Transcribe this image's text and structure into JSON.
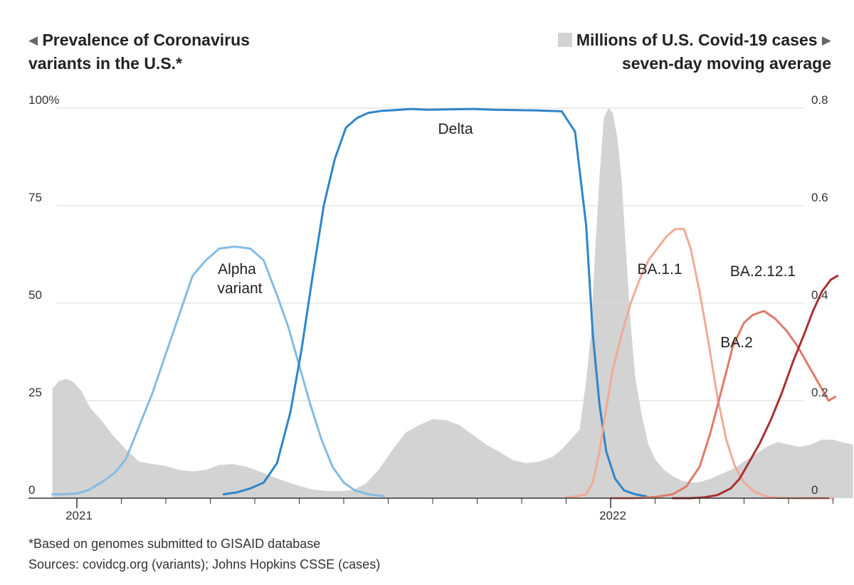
{
  "header": {
    "left_title_line1": "Prevalence of Coronavirus",
    "left_title_line2": "variants in the U.S.*",
    "right_title_line1": "Millions of U.S. Covid-19 cases",
    "right_title_line2": "seven-day moving average"
  },
  "footer": {
    "note": "*Based on genomes submitted to GISAID database",
    "sources": "Sources: covidcg.org (variants); Johns Hopkins CSSE (cases)"
  },
  "colors": {
    "cases_area": "#d3d3d3",
    "alpha": "#85bbe3",
    "delta": "#2f85c9",
    "ba11": "#f0aa98",
    "ba2": "#df7a69",
    "ba2121": "#a83233",
    "grid": "#d9d9d9",
    "axis": "#333333"
  },
  "chart_data": {
    "type": "area+line",
    "left_axis": {
      "title": "Prevalence of Coronavirus variants in the U.S.*",
      "unit": "%",
      "ylim": [
        0,
        100
      ],
      "ticks": [
        0,
        25,
        50,
        75,
        100
      ],
      "tick_labels": [
        "0",
        "25",
        "50",
        "75",
        "100%"
      ]
    },
    "right_axis": {
      "title": "Millions of U.S. Covid-19 cases, seven-day moving average",
      "ylim": [
        0,
        0.8
      ],
      "ticks": [
        0,
        0.2,
        0.4,
        0.6,
        0.8
      ],
      "tick_labels": [
        "0",
        "0.2",
        "0.4",
        "0.6",
        "0.8"
      ]
    },
    "x_axis": {
      "unit": "months since Jan 2021",
      "xlim": [
        0,
        17.5
      ],
      "year_labels": [
        {
          "x": 0,
          "label": "2021"
        },
        {
          "x": 12,
          "label": "2022"
        }
      ],
      "month_ticks": [
        0,
        1,
        2,
        3,
        4,
        5,
        6,
        7,
        8,
        9,
        10,
        11,
        12,
        13,
        14,
        15,
        16,
        17
      ]
    },
    "grid": true,
    "cases": {
      "name": "Millions of U.S. Covid-19 cases",
      "x": [
        -0.55,
        -0.4,
        -0.25,
        -0.1,
        0.1,
        0.3,
        0.55,
        0.8,
        1.1,
        1.4,
        1.7,
        2.0,
        2.3,
        2.6,
        2.9,
        3.2,
        3.5,
        3.8,
        4.1,
        4.4,
        4.7,
        5.0,
        5.3,
        5.6,
        5.9,
        6.2,
        6.5,
        6.8,
        7.1,
        7.4,
        7.7,
        8.0,
        8.3,
        8.6,
        8.9,
        9.2,
        9.5,
        9.8,
        10.1,
        10.4,
        10.7,
        10.9,
        11.1,
        11.3,
        11.45,
        11.55,
        11.65,
        11.75,
        11.85,
        11.95,
        12.05,
        12.15,
        12.25,
        12.35,
        12.45,
        12.55,
        12.7,
        12.85,
        13.0,
        13.2,
        13.4,
        13.6,
        13.8,
        14.0,
        14.25,
        14.5,
        14.75,
        15.0,
        15.25,
        15.5,
        15.75,
        16.0,
        16.25,
        16.5,
        16.75,
        17.0,
        17.2,
        17.45
      ],
      "values": [
        0.225,
        0.24,
        0.245,
        0.24,
        0.22,
        0.185,
        0.16,
        0.13,
        0.1,
        0.075,
        0.07,
        0.066,
        0.058,
        0.055,
        0.058,
        0.068,
        0.07,
        0.065,
        0.055,
        0.044,
        0.034,
        0.025,
        0.018,
        0.015,
        0.014,
        0.017,
        0.03,
        0.06,
        0.1,
        0.135,
        0.15,
        0.162,
        0.16,
        0.15,
        0.13,
        0.11,
        0.095,
        0.078,
        0.072,
        0.075,
        0.085,
        0.1,
        0.12,
        0.14,
        0.24,
        0.33,
        0.5,
        0.66,
        0.78,
        0.8,
        0.79,
        0.74,
        0.65,
        0.5,
        0.36,
        0.25,
        0.17,
        0.11,
        0.08,
        0.058,
        0.045,
        0.036,
        0.032,
        0.033,
        0.04,
        0.05,
        0.06,
        0.075,
        0.09,
        0.105,
        0.115,
        0.11,
        0.105,
        0.11,
        0.12,
        0.12,
        0.115,
        0.11
      ]
    },
    "series": [
      {
        "name": "Alpha variant",
        "x": [
          -0.55,
          -0.3,
          0.0,
          0.25,
          0.55,
          0.85,
          1.1,
          1.35,
          1.7,
          2.0,
          2.3,
          2.6,
          2.9,
          3.2,
          3.55,
          3.9,
          4.2,
          4.5,
          4.75,
          5.0,
          5.25,
          5.5,
          5.75,
          6.0,
          6.25,
          6.55,
          6.9
        ],
        "values": [
          1,
          1,
          1.2,
          2,
          4,
          6.5,
          10,
          17,
          27,
          37,
          47,
          57,
          61,
          64,
          64.5,
          64,
          61,
          52,
          44,
          34,
          24,
          15,
          8,
          4,
          2,
          1,
          0.5
        ]
      },
      {
        "name": "Delta",
        "x": [
          3.3,
          3.6,
          3.9,
          4.2,
          4.5,
          4.8,
          5.05,
          5.3,
          5.55,
          5.8,
          6.05,
          6.3,
          6.55,
          6.85,
          7.15,
          7.5,
          7.9,
          8.4,
          8.9,
          9.4,
          9.9,
          10.4,
          10.9,
          11.2,
          11.45,
          11.6,
          11.75,
          11.9,
          12.1,
          12.3,
          12.55,
          12.8
        ],
        "values": [
          1,
          1.5,
          2.5,
          4,
          9,
          22,
          38,
          57,
          75,
          87,
          95,
          97.5,
          98.8,
          99.3,
          99.5,
          99.8,
          99.6,
          99.7,
          99.8,
          99.6,
          99.5,
          99.4,
          99.2,
          94,
          70,
          42,
          24,
          12,
          5,
          2,
          1,
          0.5
        ]
      },
      {
        "name": "BA.1.1",
        "x": [
          11.0,
          11.25,
          11.45,
          11.6,
          11.75,
          11.9,
          12.05,
          12.25,
          12.45,
          12.65,
          12.85,
          13.05,
          13.25,
          13.45,
          13.65,
          13.8,
          14.0,
          14.2,
          14.4,
          14.6,
          14.8,
          15.0,
          15.25,
          15.5,
          15.75,
          16.0,
          16.3,
          16.6,
          17.0
        ],
        "values": [
          0.2,
          0.5,
          1,
          4,
          12,
          23,
          33,
          42,
          50,
          56,
          61,
          64,
          67,
          69,
          69,
          64,
          53,
          40,
          26,
          15,
          8,
          4,
          1.5,
          0.5,
          0.1,
          0.05,
          0,
          0,
          0
        ]
      },
      {
        "name": "BA.2",
        "x": [
          12.0,
          12.5,
          13.0,
          13.4,
          13.7,
          14.0,
          14.25,
          14.5,
          14.75,
          15.0,
          15.2,
          15.45,
          15.7,
          15.95,
          16.2,
          16.45,
          16.7,
          16.9,
          17.05
        ],
        "values": [
          0,
          0,
          0.3,
          1,
          3,
          8,
          17,
          28,
          39,
          45,
          47,
          48,
          46,
          43,
          39,
          34,
          29,
          25,
          26
        ]
      },
      {
        "name": "BA.2.12.1",
        "x": [
          13.4,
          13.8,
          14.1,
          14.4,
          14.7,
          14.9,
          15.1,
          15.35,
          15.6,
          15.85,
          16.1,
          16.35,
          16.55,
          16.75,
          16.95,
          17.1
        ],
        "values": [
          0,
          0,
          0.2,
          0.8,
          2.5,
          5,
          9,
          14,
          20,
          27,
          35,
          42,
          48,
          53,
          56,
          57
        ]
      }
    ],
    "annotations": [
      {
        "text": "Alpha variant",
        "lines": [
          "Alpha",
          "variant"
        ]
      },
      {
        "text": "Delta"
      },
      {
        "text": "BA.1.1"
      },
      {
        "text": "BA.2"
      },
      {
        "text": "BA.2.12.1"
      }
    ]
  }
}
